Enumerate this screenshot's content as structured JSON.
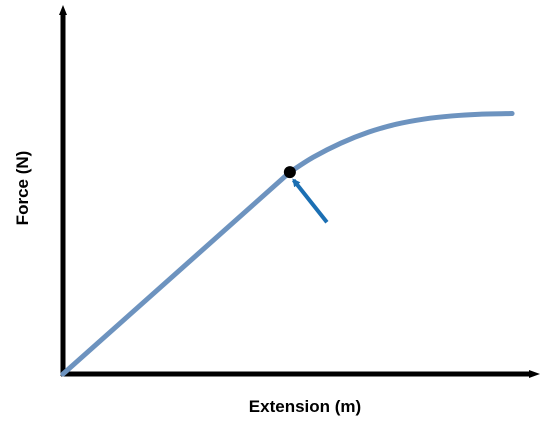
{
  "chart_data": {
    "type": "line",
    "title": "",
    "xlabel": "Extension (m)",
    "ylabel": "Force (N)",
    "xlim": [
      0,
      10
    ],
    "ylim": [
      0,
      10
    ],
    "grid": false,
    "legend": "none",
    "series": [
      {
        "x": [
          0,
          4.9,
          5.4,
          6.0,
          6.6,
          7.2,
          7.8,
          8.4,
          9.0,
          9.7
        ],
        "y": [
          0,
          5.85,
          6.28,
          6.69,
          7.01,
          7.24,
          7.39,
          7.48,
          7.53,
          7.55
        ]
      }
    ],
    "annotations": [
      {
        "type": "marker",
        "x": 4.9,
        "y": 5.85
      },
      {
        "type": "arrow",
        "from": [
          5.7,
          4.4
        ],
        "to": [
          4.98,
          5.62
        ]
      }
    ],
    "colors": {
      "line": "#6d93bf",
      "arrow": "#1b6fb3",
      "marker": "#000000",
      "axis": "#000000"
    }
  }
}
